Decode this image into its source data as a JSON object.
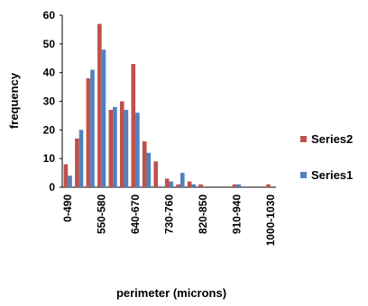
{
  "chart_data": {
    "type": "bar",
    "ylabel": "frequency",
    "xlabel": "perimeter (microns)",
    "ylim": [
      0,
      60
    ],
    "yticks": [
      "0",
      "10",
      "20",
      "30",
      "40",
      "50",
      "60"
    ],
    "grid": false,
    "legend_position": "right",
    "categories": [
      "0-490",
      "",
      "",
      "550-580",
      "",
      "",
      "640-670",
      "",
      "",
      "730-760",
      "",
      "",
      "820-850",
      "",
      "",
      "910-940",
      "",
      "",
      "1000-1030"
    ],
    "series": [
      {
        "name": "Series2",
        "color": "#c0504d",
        "values": [
          8,
          17,
          38,
          57,
          27,
          30,
          43,
          16,
          9,
          3,
          1,
          2,
          1,
          0,
          0,
          1,
          0,
          0,
          1
        ]
      },
      {
        "name": "Series1",
        "color": "#4f81bd",
        "values": [
          4,
          20,
          41,
          48,
          28,
          27,
          26,
          12,
          0,
          2,
          5,
          1,
          0,
          0,
          0,
          1,
          0,
          0,
          0
        ]
      }
    ],
    "legend": [
      "Series2",
      "Series1"
    ]
  }
}
